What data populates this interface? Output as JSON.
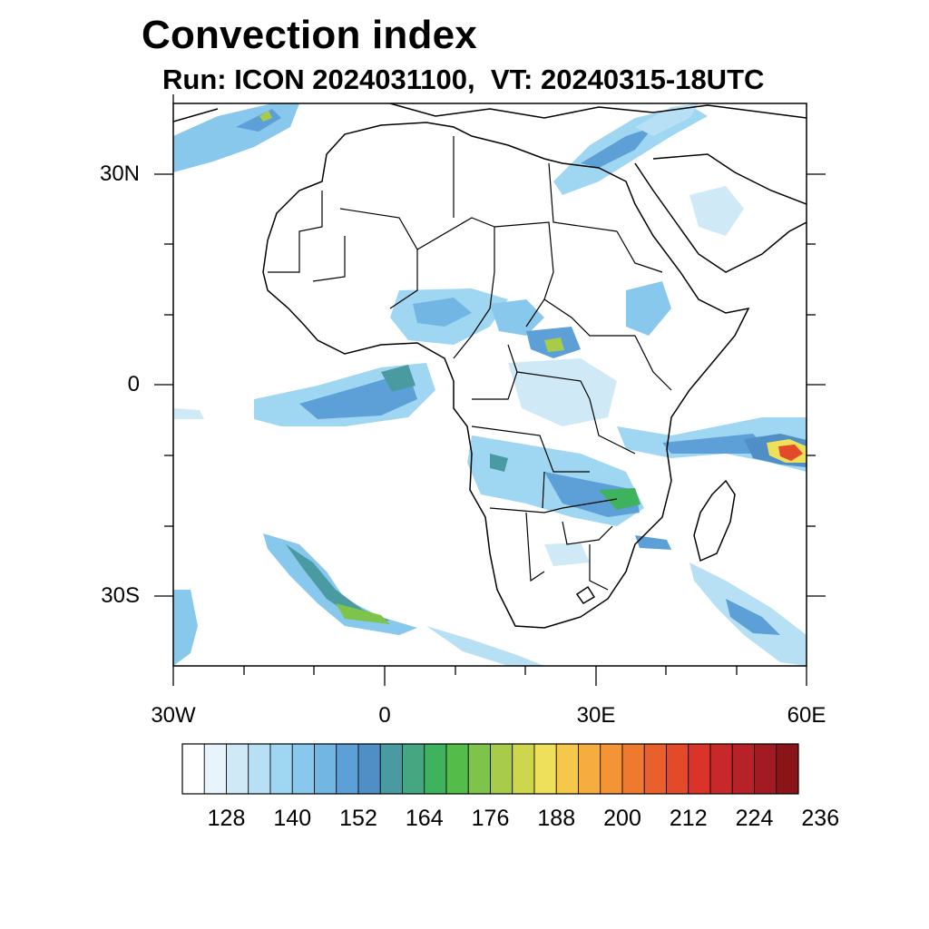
{
  "title": "Convection index",
  "subtitle": "Run: ICON 2024031100,  VT: 20240315-18UTC",
  "map": {
    "region": "Africa",
    "lon_range": [
      -30,
      60
    ],
    "lat_range": [
      -40,
      40
    ],
    "lat_labels": [
      "30N",
      "0",
      "30S"
    ],
    "lon_labels": [
      "30W",
      "0",
      "30E",
      "60E"
    ],
    "background": "#ffffff",
    "coastline_color": "#000000"
  },
  "colorbar": {
    "colors": [
      "#ffffff",
      "#e8f4fb",
      "#cfe9f7",
      "#b8e0f5",
      "#9fd6f2",
      "#88c8ec",
      "#72b6e4",
      "#5da0d8",
      "#4f8fc6",
      "#4a9aa2",
      "#45a682",
      "#3fb25e",
      "#54bd4a",
      "#7ec44b",
      "#a8cc4a",
      "#cdd64c",
      "#eee05a",
      "#f5c84c",
      "#f6ad40",
      "#f39436",
      "#ee7a30",
      "#e8612c",
      "#e24a2a",
      "#da3329",
      "#c9282a",
      "#b72128",
      "#a21b22",
      "#8a1519"
    ],
    "labels": [
      "128",
      "140",
      "152",
      "164",
      "176",
      "188",
      "200",
      "212",
      "224",
      "236"
    ]
  }
}
